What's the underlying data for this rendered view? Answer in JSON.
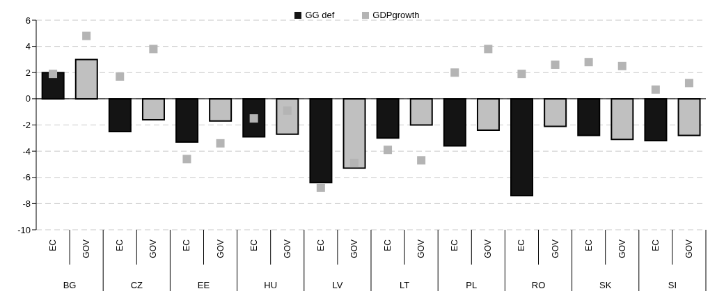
{
  "chart_data": {
    "type": "bar",
    "categories": [
      "EC",
      "GOV",
      "EC",
      "GOV",
      "EC",
      "GOV",
      "EC",
      "GOV",
      "EC",
      "GOV",
      "EC",
      "GOV",
      "EC",
      "GOV",
      "EC",
      "GOV",
      "EC",
      "GOV",
      "EC",
      "GOV"
    ],
    "annotations": [
      "BG",
      "CZ",
      "EE",
      "HU",
      "LV",
      "LT",
      "PL",
      "RO",
      "SK",
      "SI"
    ],
    "series": [
      {
        "name": "GG def",
        "color": "#141414",
        "colors": [
          "#141414",
          "#c0c0c0",
          "#141414",
          "#c0c0c0",
          "#141414",
          "#c0c0c0",
          "#141414",
          "#c0c0c0",
          "#141414",
          "#c0c0c0",
          "#141414",
          "#c0c0c0",
          "#141414",
          "#c0c0c0",
          "#141414",
          "#c0c0c0",
          "#141414",
          "#c0c0c0",
          "#141414",
          "#c0c0c0"
        ],
        "values": [
          2.0,
          3.0,
          -2.5,
          -1.6,
          -3.3,
          -1.7,
          -2.9,
          -2.7,
          -6.4,
          -5.3,
          -3.0,
          -2.0,
          -3.6,
          -2.4,
          -7.4,
          -2.1,
          -2.8,
          -3.1,
          -3.2,
          -2.8
        ]
      },
      {
        "name": "GDPgrowth",
        "type": "scatter",
        "color": "#b4b4b4",
        "values": [
          1.9,
          4.8,
          1.7,
          3.8,
          -4.6,
          -3.4,
          -1.5,
          -0.9,
          -6.8,
          -4.9,
          -3.9,
          -4.7,
          2.0,
          3.8,
          1.9,
          2.6,
          2.8,
          2.5,
          0.7,
          1.2
        ]
      }
    ],
    "ylim": [
      -10,
      6
    ],
    "yticks": [
      -10,
      -8,
      -6,
      -4,
      -2,
      0,
      2,
      4,
      6
    ],
    "grid": "y",
    "legend": "top",
    "marker": "square"
  }
}
